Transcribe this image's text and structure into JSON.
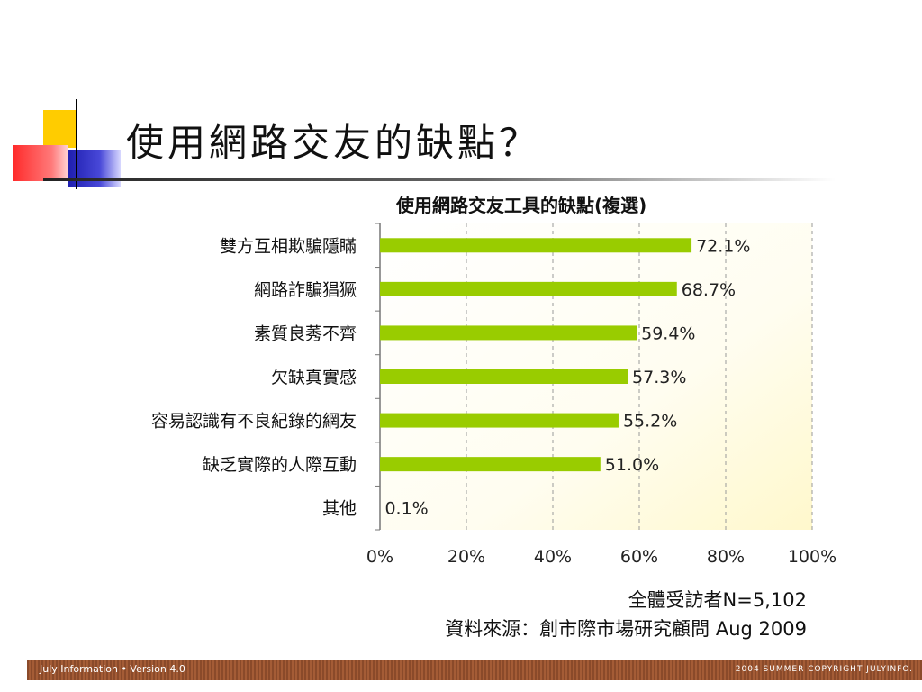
{
  "slide": {
    "title": "使用網路交友的缺點？"
  },
  "chart_data": {
    "type": "bar",
    "orientation": "horizontal",
    "title": "使用網路交友工具的缺點(複選)",
    "categories": [
      "雙方互相欺騙隱瞞",
      "網路詐騙猖獗",
      "素質良莠不齊",
      "欠缺真實感",
      "容易認識有不良紀錄的網友",
      "缺乏實際的人際互動",
      "其他"
    ],
    "values": [
      72.1,
      68.7,
      59.4,
      57.3,
      55.2,
      51.0,
      0.1
    ],
    "value_labels": [
      "72.1%",
      "68.7%",
      "59.4%",
      "57.3%",
      "55.2%",
      "51.0%",
      "0.1%"
    ],
    "xlim": [
      0,
      100
    ],
    "xticks": [
      "0%",
      "20%",
      "40%",
      "60%",
      "80%",
      "100%"
    ],
    "grid": "dashed vertical",
    "bar_color": "#99cc00",
    "legend": "none"
  },
  "notes": {
    "sample": "全體受訪者N=5,102",
    "source": "資料來源：創市際市場研究顧問 Aug 2009"
  },
  "footer": {
    "left": "July Information • Version 4.0",
    "right": "2004 SUMMER COPYRIGHT JULYINFO."
  }
}
